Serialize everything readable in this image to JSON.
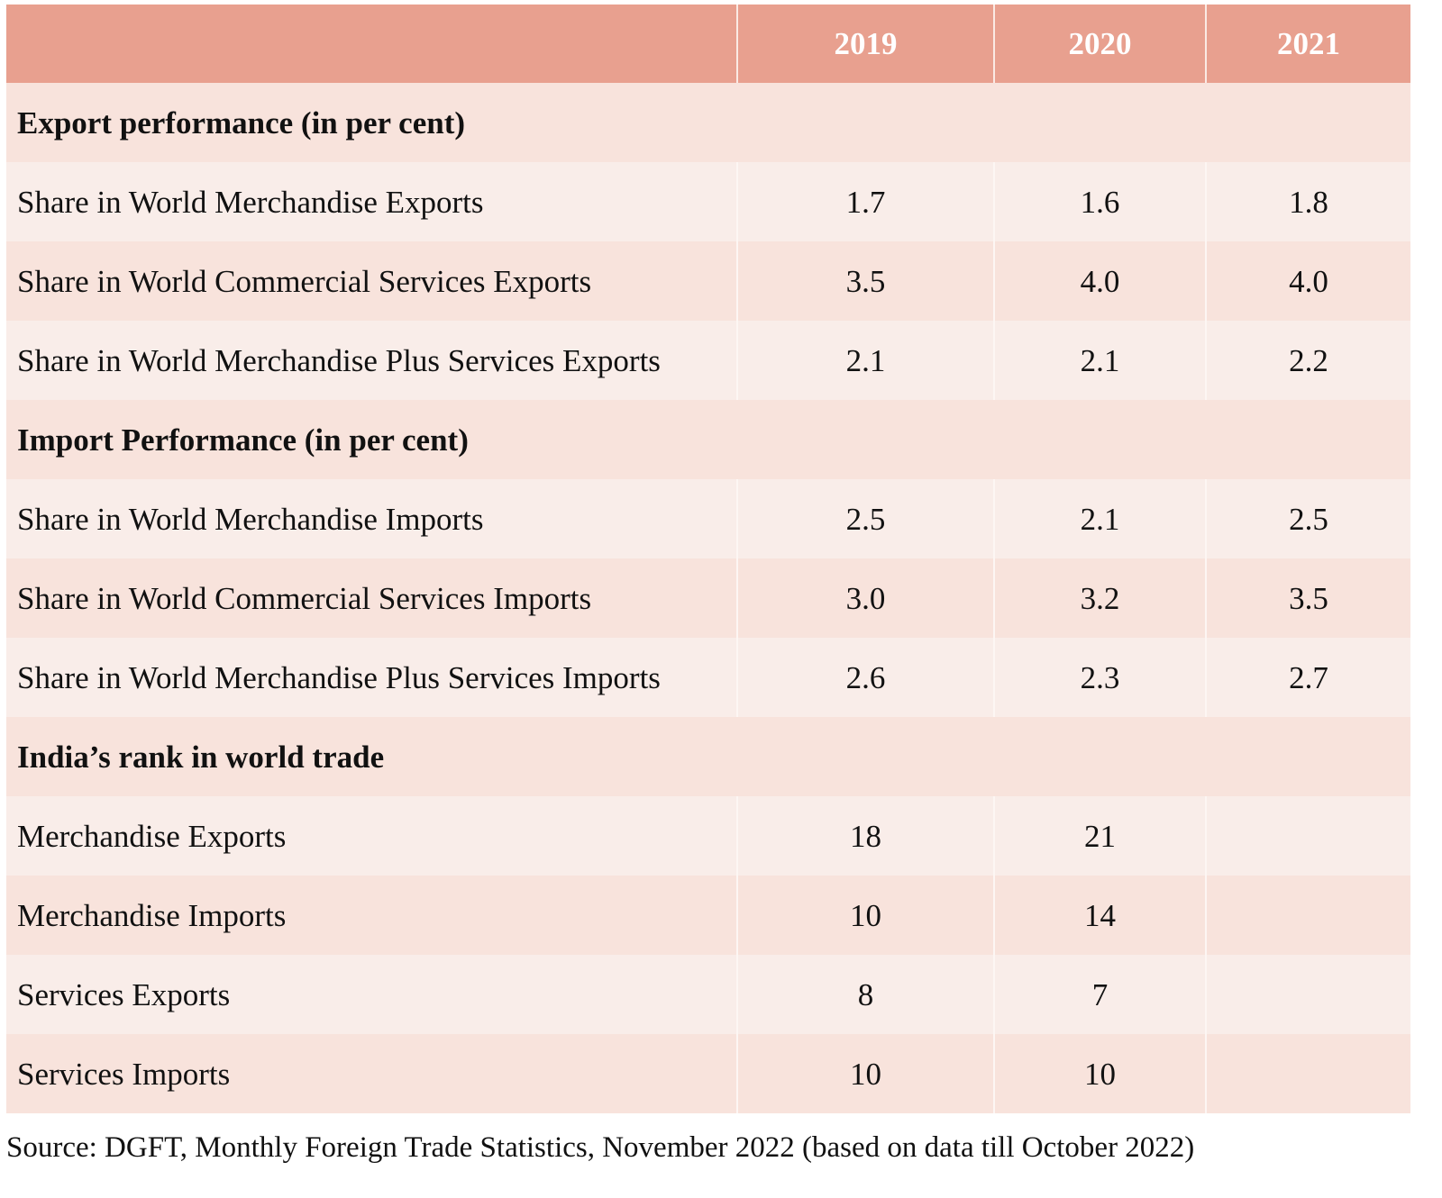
{
  "table": {
    "columns": [
      "",
      "2019",
      "2020",
      "2021"
    ],
    "sections": [
      {
        "title": "Export performance (in per cent)",
        "rows": [
          {
            "label": "Share in World Merchandise Exports",
            "values": [
              "1.7",
              "1.6",
              "1.8"
            ]
          },
          {
            "label": "Share in World Commercial Services Exports",
            "values": [
              "3.5",
              "4.0",
              "4.0"
            ]
          },
          {
            "label": "Share in World Merchandise Plus Services Exports",
            "values": [
              "2.1",
              "2.1",
              "2.2"
            ]
          }
        ]
      },
      {
        "title": "Import Performance (in per cent)",
        "rows": [
          {
            "label": "Share in World Merchandise Imports",
            "values": [
              "2.5",
              "2.1",
              "2.5"
            ]
          },
          {
            "label": "Share in World Commercial Services Imports",
            "values": [
              "3.0",
              "3.2",
              "3.5"
            ]
          },
          {
            "label": "Share in World Merchandise Plus Services Imports",
            "values": [
              "2.6",
              "2.3",
              "2.7"
            ]
          }
        ]
      },
      {
        "title": "India’s rank in world trade",
        "rows": [
          {
            "label": "Merchandise Exports",
            "values": [
              "18",
              "21",
              ""
            ]
          },
          {
            "label": "Merchandise Imports",
            "values": [
              "10",
              "14",
              ""
            ]
          },
          {
            "label": "Services Exports",
            "values": [
              "8",
              "7",
              ""
            ]
          },
          {
            "label": "Services Imports",
            "values": [
              "10",
              "10",
              ""
            ]
          }
        ]
      }
    ]
  },
  "source": "Source: DGFT, Monthly Foreign Trade Statistics, November 2022 (based on data till October 2022)",
  "colors": {
    "header_bg": "#e8a08f",
    "header_text": "#ffffff",
    "section_bg": "#f8e3dc",
    "row_light_bg": "#f9ede9",
    "row_dark_bg": "#f8e3dc"
  }
}
